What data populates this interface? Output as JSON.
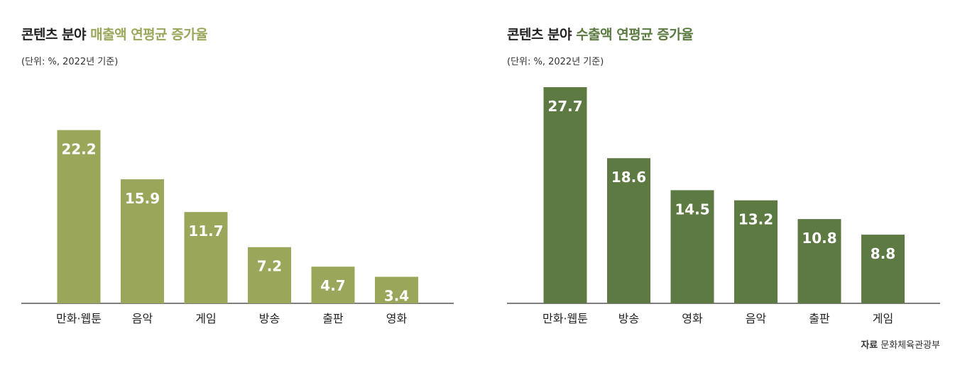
{
  "colors": {
    "left_bar": "#9aa75b",
    "right_bar": "#5d7a42",
    "baseline": "#333333",
    "bar_label": "#ffffff",
    "cat_label": "#222222"
  },
  "left": {
    "title_prefix": "콘텐츠 분야 ",
    "title_highlight": "매출액 연평균 증가율",
    "unit": "(단위: %, 2022년 기준)"
  },
  "right": {
    "title_prefix": "콘텐츠 분야 ",
    "title_highlight": "수출액 연평균 증가율",
    "unit": "(단위: %, 2022년 기준)"
  },
  "source": {
    "label": "자료",
    "text": "문화체육관광부"
  },
  "chart_data": [
    {
      "type": "bar",
      "title": "콘텐츠 분야 매출액 연평균 증가율",
      "subtitle": "(단위: %, 2022년 기준)",
      "categories": [
        "만화·웹툰",
        "음악",
        "게임",
        "방송",
        "출판",
        "영화"
      ],
      "values": [
        22.2,
        15.9,
        11.7,
        7.2,
        4.7,
        3.4
      ],
      "ylim": [
        0,
        27.7
      ],
      "grid": false,
      "color": "#9aa75b"
    },
    {
      "type": "bar",
      "title": "콘텐츠 분야 수출액 연평균 증가율",
      "subtitle": "(단위: %, 2022년 기준)",
      "categories": [
        "만화·웹툰",
        "방송",
        "영화",
        "음악",
        "출판",
        "게임"
      ],
      "values": [
        27.7,
        18.6,
        14.5,
        13.2,
        10.8,
        8.8
      ],
      "ylim": [
        0,
        27.7
      ],
      "grid": false,
      "color": "#5d7a42"
    }
  ]
}
